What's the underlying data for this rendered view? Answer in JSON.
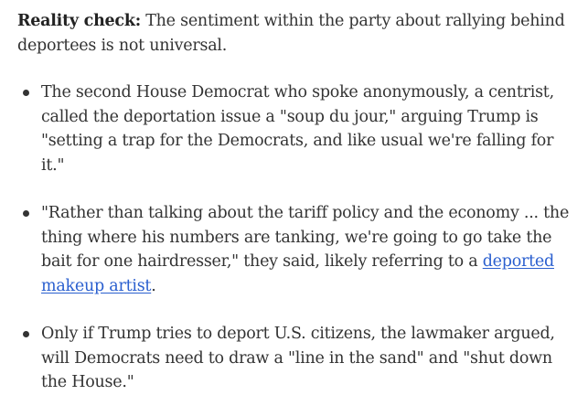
{
  "lead": {
    "label": "Reality check:",
    "text": " The sentiment within the party about rallying behind deportees is not universal."
  },
  "bullets": [
    {
      "text": "The second House Democrat who spoke anonymously, a centrist, called the deportation issue a \"soup du jour,\" arguing Trump is \"setting a trap for the Democrats, and like usual we're falling for it.\""
    },
    {
      "text_before": "\"Rather than talking about the tariff policy and the economy ... the thing where his numbers are tanking, we're going to go take the bait for one hairdresser,\" they said, likely referring to a ",
      "link_text": "deported makeup artist",
      "text_after": "."
    },
    {
      "text": "Only if Trump tries to deport U.S. citizens, the lawmaker argued, will Democrats need to draw a \"line in the sand\" and \"shut down the House.\""
    }
  ],
  "colors": {
    "text": "#333333",
    "link": "#2a5fcf"
  }
}
